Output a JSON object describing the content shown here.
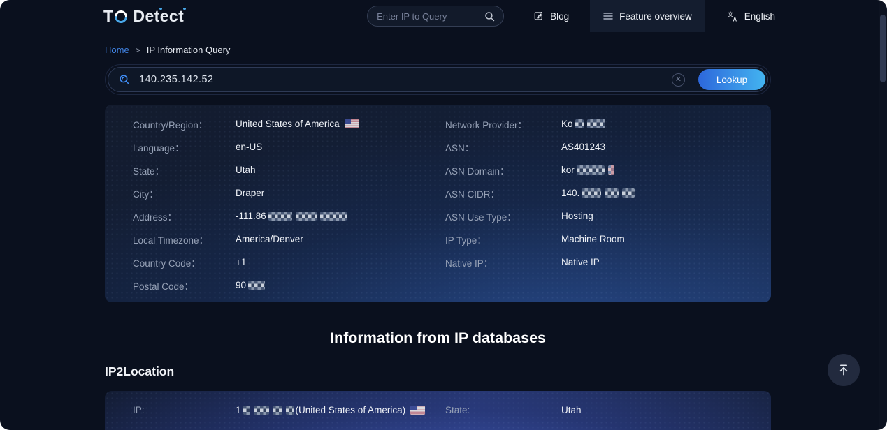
{
  "header": {
    "logo_prefix": "T",
    "logo_suffix": "Detect",
    "search_placeholder": "Enter IP to Query",
    "nav": {
      "blog": "Blog",
      "feature_overview": "Feature overview",
      "language": "English"
    }
  },
  "breadcrumb": {
    "home": "Home",
    "separator": ">",
    "current": "IP Information Query"
  },
  "lookup_bar": {
    "value": "140.235.142.52",
    "button": "Lookup"
  },
  "colors": {
    "accent_blue": "#3f8cf3",
    "link_blue": "#4286e8",
    "lookup_gradient_start": "#2d67db",
    "lookup_gradient_end": "#43b4f0",
    "page_background": "#0a101e"
  },
  "ip_info": {
    "left": [
      {
        "label": "Country/Region：",
        "value": "United States of America",
        "flag": "us"
      },
      {
        "label": "Language：",
        "value": "en-US"
      },
      {
        "label": "State：",
        "value": "Utah"
      },
      {
        "label": "City：",
        "value": "Draper"
      },
      {
        "label": "Address：",
        "value": "-111.86",
        "redacted": [
          34,
          30,
          38
        ]
      },
      {
        "label": "Local Timezone：",
        "value": "America/Denver"
      },
      {
        "label": "Country Code：",
        "value": "+1"
      },
      {
        "label": "Postal Code：",
        "value": "90",
        "redacted": [
          24
        ]
      }
    ],
    "right": [
      {
        "label": "Network Provider：",
        "value": "Ko",
        "redacted": [
          12,
          26
        ]
      },
      {
        "label": "ASN：",
        "value": "AS401243"
      },
      {
        "label": "ASN Domain：",
        "value": "kor",
        "redacted": [
          40
        ],
        "pink": true
      },
      {
        "label": "ASN CIDR：",
        "value": "140.",
        "redacted": [
          28,
          20,
          18
        ]
      },
      {
        "label": "ASN Use Type：",
        "value": "Hosting"
      },
      {
        "label": "IP Type：",
        "value": "Machine Room"
      },
      {
        "label": "Native IP：",
        "value": "Native IP"
      }
    ]
  },
  "section": {
    "title": "Information from IP databases"
  },
  "ip2location": {
    "heading": "IP2Location",
    "left": [
      {
        "label": "IP:",
        "value": "1",
        "redacted": [
          10,
          22,
          14,
          12
        ],
        "suffix": "(United States of America)",
        "flag": "us"
      }
    ],
    "right": [
      {
        "label": "State:",
        "value": "Utah"
      }
    ]
  }
}
